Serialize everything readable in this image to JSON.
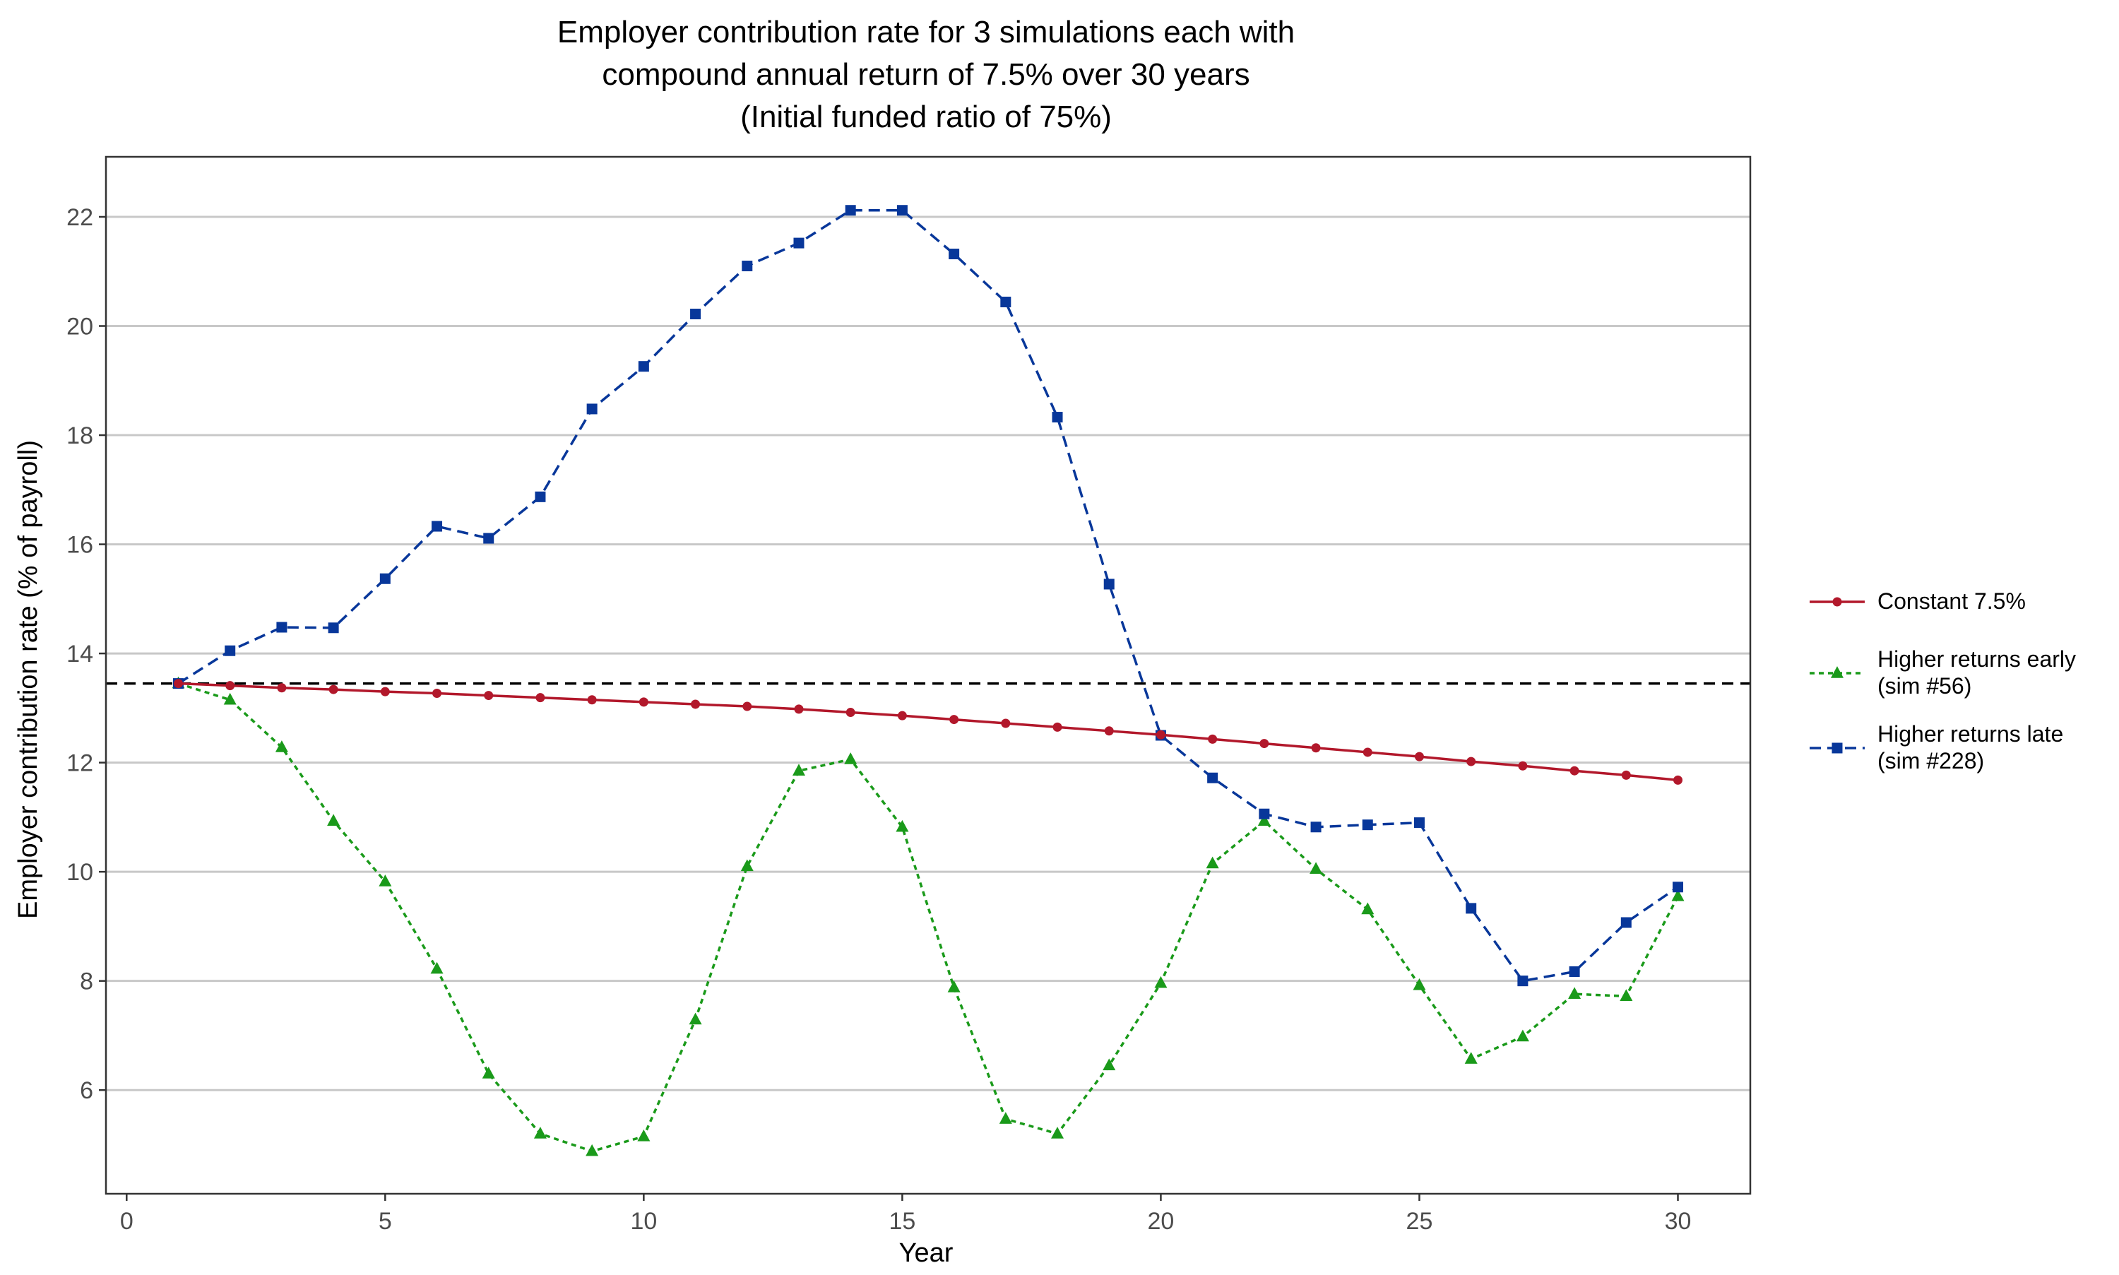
{
  "chart_data": {
    "type": "line",
    "title_lines": [
      "Employer contribution rate for 3 simulations each with",
      "compound annual return of 7.5% over 30 years",
      "(Initial funded ratio of 75%)"
    ],
    "xlabel": "Year",
    "ylabel": "Employer contribution rate (% of payroll)",
    "xlim": [
      -0.4,
      31.4
    ],
    "ylim": [
      4.1,
      23.1
    ],
    "x_ticks": [
      0,
      5,
      10,
      15,
      20,
      25,
      30
    ],
    "y_ticks": [
      6,
      8,
      10,
      12,
      14,
      16,
      18,
      20,
      22
    ],
    "grid": "horizontal",
    "legend_position": "right",
    "reference_line": {
      "y": 13.45,
      "style": "dashed",
      "color": "#000000"
    },
    "x": [
      1,
      2,
      3,
      4,
      5,
      6,
      7,
      8,
      9,
      10,
      11,
      12,
      13,
      14,
      15,
      16,
      17,
      18,
      19,
      20,
      21,
      22,
      23,
      24,
      25,
      26,
      27,
      28,
      29,
      30
    ],
    "series": [
      {
        "name": "Constant 7.5%",
        "color": "#B2182B",
        "line": "solid",
        "marker": "circle",
        "values": [
          13.45,
          13.41,
          13.37,
          13.34,
          13.3,
          13.27,
          13.23,
          13.19,
          13.15,
          13.11,
          13.07,
          13.03,
          12.98,
          12.92,
          12.86,
          12.79,
          12.72,
          12.65,
          12.58,
          12.51,
          12.43,
          12.35,
          12.27,
          12.19,
          12.11,
          12.02,
          11.94,
          11.85,
          11.77,
          11.68
        ]
      },
      {
        "name": "Higher returns early\n(sim #56)",
        "color": "#1A9A1A",
        "line": "dotted",
        "marker": "triangle",
        "values": [
          13.45,
          13.15,
          12.28,
          10.93,
          9.82,
          8.22,
          6.3,
          5.2,
          4.88,
          5.15,
          7.29,
          10.1,
          11.85,
          12.06,
          10.82,
          7.88,
          5.47,
          5.2,
          6.45,
          7.96,
          10.15,
          10.93,
          10.05,
          9.31,
          7.92,
          6.57,
          6.98,
          7.76,
          7.72,
          9.55
        ]
      },
      {
        "name": "Higher returns late\n(sim #228)",
        "color": "#08379A",
        "line": "dashed",
        "marker": "square",
        "values": [
          13.45,
          14.05,
          14.48,
          14.47,
          15.37,
          16.33,
          16.11,
          16.87,
          18.48,
          19.26,
          20.22,
          21.1,
          21.52,
          22.12,
          22.12,
          21.32,
          20.44,
          18.33,
          15.27,
          12.5,
          11.72,
          11.06,
          10.82,
          10.86,
          10.9,
          9.33,
          8.0,
          8.17,
          9.07,
          9.72
        ]
      }
    ]
  }
}
